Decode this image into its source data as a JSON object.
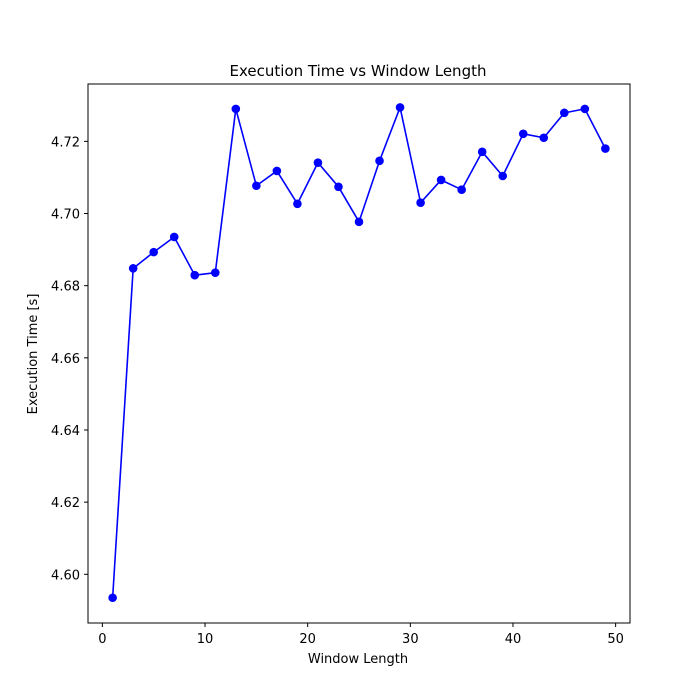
{
  "chart_data": {
    "type": "line",
    "title": "Execution Time vs Window Length",
    "xlabel": "Window Length",
    "ylabel": "Execution Time [s]",
    "xlim": [
      -1.4,
      51.4
    ],
    "ylim": [
      4.5865,
      4.7359
    ],
    "xticks": [
      0,
      10,
      20,
      30,
      40,
      50
    ],
    "xtick_labels": [
      "0",
      "10",
      "20",
      "30",
      "40",
      "50"
    ],
    "yticks": [
      4.6,
      4.62,
      4.64,
      4.66,
      4.68,
      4.7,
      4.72
    ],
    "ytick_labels": [
      "4.60",
      "4.62",
      "4.64",
      "4.66",
      "4.68",
      "4.70",
      "4.72"
    ],
    "grid": false,
    "legend": "none",
    "series": [
      {
        "color": "#0000ff",
        "marker": "circle",
        "x": [
          1,
          3,
          5,
          7,
          9,
          11,
          13,
          15,
          17,
          19,
          21,
          23,
          25,
          27,
          29,
          31,
          33,
          35,
          37,
          39,
          41,
          43,
          45,
          47,
          49
        ],
        "y": [
          4.5935,
          4.6848,
          4.6893,
          4.6935,
          4.6829,
          4.6836,
          4.729,
          4.7077,
          4.7118,
          4.7027,
          4.7141,
          4.7074,
          4.6977,
          4.7146,
          4.7294,
          4.703,
          4.7093,
          4.7066,
          4.7171,
          4.7104,
          4.7221,
          4.721,
          4.7279,
          4.729,
          4.718
        ]
      }
    ]
  }
}
